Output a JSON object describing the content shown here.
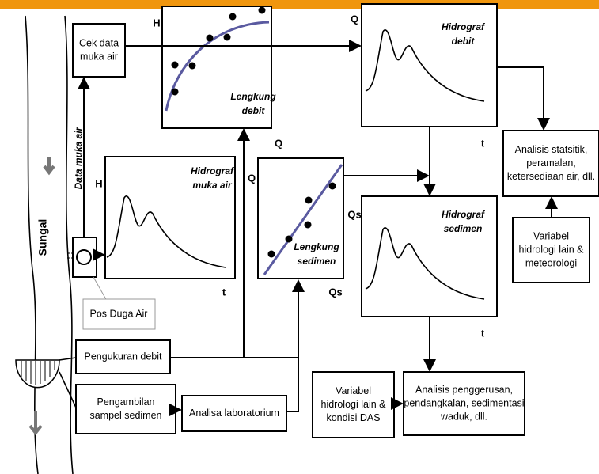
{
  "cek_data": [
    "Cek data",
    "muka air"
  ],
  "lengkung_debit": {
    "y_label": "H",
    "x_label": "Q",
    "title": [
      "Lengkung",
      "debit"
    ]
  },
  "hidrograf_debit": {
    "y_label": "Q",
    "x_label": "t",
    "title": [
      "Hidrograf",
      "debit"
    ]
  },
  "hidrograf_muka_air": {
    "y_label": "H",
    "x_label": "t",
    "title": [
      "Hidrograf",
      "muka air"
    ]
  },
  "lengkung_sedimen": {
    "y_label": "Q",
    "x_label": "Qs",
    "title": [
      "Lengkung",
      "sedimen"
    ]
  },
  "hidrograf_sedimen": {
    "y_label": "Qs",
    "x_label": "t",
    "title": [
      "Hidrograf",
      "sedimen"
    ]
  },
  "analisis_statistik": [
    "Analisis statsitik,",
    "peramalan,",
    "ketersediaan air, dll."
  ],
  "variabel_meteorologi": [
    "Variabel",
    "hidrologi lain &",
    "meteorologi"
  ],
  "data_muka_air": "Data muka air",
  "sungai": "Sungai",
  "pos_duga_air": "Pos Duga Air",
  "pengukuran_debit": "Pengukuran debit",
  "pengambilan_sampel": [
    "Pengambilan",
    "sampel sedimen"
  ],
  "analisa_laboratorium": "Analisa laboratorium",
  "variabel_das": [
    "Variabel",
    "hidrologi lain &",
    "kondisi DAS"
  ],
  "analisis_penggerusan": [
    "Analisis penggerusan,",
    "pendangkalan, sedimentasi",
    "waduk, dll."
  ]
}
